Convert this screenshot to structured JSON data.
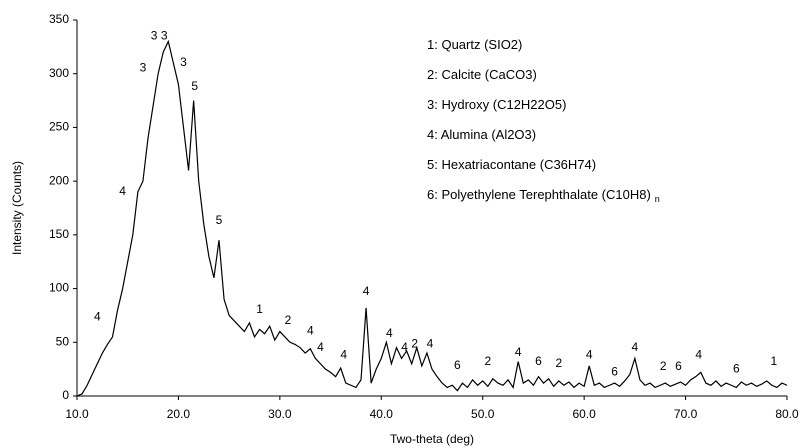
{
  "chart_data": {
    "type": "line",
    "xlabel": "Two-theta (deg)",
    "ylabel": "Intensity (Counts)",
    "color": "#000000",
    "x": [
      10.0,
      10.5,
      11.0,
      11.5,
      12.0,
      12.5,
      13.0,
      13.5,
      14.0,
      14.5,
      15.0,
      15.5,
      16.0,
      16.5,
      17.0,
      17.5,
      18.0,
      18.5,
      19.0,
      19.5,
      20.0,
      20.5,
      21.0,
      21.5,
      22.0,
      22.5,
      23.0,
      23.5,
      24.0,
      24.5,
      25.0,
      25.5,
      26.0,
      26.5,
      27.0,
      27.5,
      28.0,
      28.5,
      29.0,
      29.5,
      30.0,
      30.5,
      31.0,
      31.5,
      32.0,
      32.5,
      33.0,
      33.5,
      34.0,
      34.5,
      35.0,
      35.5,
      36.0,
      36.5,
      37.0,
      37.5,
      38.0,
      38.5,
      39.0,
      39.5,
      40.0,
      40.5,
      41.0,
      41.5,
      42.0,
      42.5,
      43.0,
      43.5,
      44.0,
      44.5,
      45.0,
      45.5,
      46.0,
      46.5,
      47.0,
      47.5,
      48.0,
      48.5,
      49.0,
      49.5,
      50.0,
      50.5,
      51.0,
      51.5,
      52.0,
      52.5,
      53.0,
      53.5,
      54.0,
      54.5,
      55.0,
      55.5,
      56.0,
      56.5,
      57.0,
      57.5,
      58.0,
      58.5,
      59.0,
      59.5,
      60.0,
      60.5,
      61.0,
      61.5,
      62.0,
      62.5,
      63.0,
      63.5,
      64.0,
      64.5,
      65.0,
      65.5,
      66.0,
      66.5,
      67.0,
      67.5,
      68.0,
      68.5,
      69.0,
      69.5,
      70.0,
      70.5,
      71.0,
      71.5,
      72.0,
      72.5,
      73.0,
      73.5,
      74.0,
      74.5,
      75.0,
      75.5,
      76.0,
      76.5,
      77.0,
      77.5,
      78.0,
      78.5,
      79.0,
      79.5,
      80.0
    ],
    "values": [
      0,
      2,
      10,
      20,
      30,
      40,
      48,
      55,
      80,
      100,
      125,
      150,
      190,
      200,
      240,
      270,
      300,
      320,
      330,
      310,
      290,
      250,
      210,
      275,
      200,
      160,
      130,
      110,
      145,
      90,
      75,
      70,
      65,
      60,
      68,
      55,
      62,
      58,
      65,
      52,
      60,
      55,
      50,
      48,
      45,
      40,
      44,
      35,
      30,
      25,
      22,
      18,
      26,
      12,
      10,
      8,
      15,
      82,
      12,
      25,
      35,
      50,
      30,
      45,
      35,
      42,
      30,
      45,
      28,
      40,
      25,
      18,
      12,
      8,
      10,
      5,
      12,
      8,
      15,
      10,
      14,
      9,
      16,
      12,
      10,
      15,
      8,
      32,
      12,
      15,
      10,
      18,
      12,
      16,
      9,
      14,
      10,
      13,
      8,
      12,
      9,
      28,
      10,
      12,
      8,
      10,
      12,
      9,
      14,
      20,
      35,
      15,
      10,
      12,
      8,
      10,
      12,
      9,
      11,
      13,
      10,
      15,
      18,
      22,
      12,
      10,
      14,
      9,
      12,
      10,
      8,
      13,
      10,
      12,
      9,
      11,
      14,
      10,
      8,
      12,
      10
    ],
    "xlim": [
      10,
      80
    ],
    "xticks": [
      {
        "value": 10,
        "label": "10.0"
      },
      {
        "value": 20,
        "label": "20.0"
      },
      {
        "value": 30,
        "label": "30.0"
      },
      {
        "value": 40,
        "label": "40.0"
      },
      {
        "value": 50,
        "label": "50.0"
      },
      {
        "value": 60,
        "label": "60.0"
      },
      {
        "value": 70,
        "label": "70.0"
      },
      {
        "value": 80,
        "label": "80.0"
      }
    ],
    "ylim": [
      0,
      350
    ],
    "yticks": [
      0,
      50,
      100,
      150,
      200,
      250,
      300,
      350
    ],
    "grid": false,
    "annotations": [
      {
        "text": "4",
        "x": 12,
        "y": 73
      },
      {
        "text": "4",
        "x": 14.5,
        "y": 190
      },
      {
        "text": "3",
        "x": 16.5,
        "y": 305
      },
      {
        "text": "3",
        "x": 17.6,
        "y": 335
      },
      {
        "text": "3",
        "x": 18.6,
        "y": 335
      },
      {
        "text": "3",
        "x": 20.5,
        "y": 310
      },
      {
        "text": "5",
        "x": 21.6,
        "y": 288
      },
      {
        "text": "5",
        "x": 24,
        "y": 163
      },
      {
        "text": "1",
        "x": 28,
        "y": 80
      },
      {
        "text": "2",
        "x": 30.8,
        "y": 70
      },
      {
        "text": "4",
        "x": 33,
        "y": 60
      },
      {
        "text": "4",
        "x": 34,
        "y": 45
      },
      {
        "text": "4",
        "x": 36.3,
        "y": 38
      },
      {
        "text": "4",
        "x": 38.5,
        "y": 97
      },
      {
        "text": "4",
        "x": 40.8,
        "y": 58
      },
      {
        "text": "4",
        "x": 42.3,
        "y": 45
      },
      {
        "text": "2",
        "x": 43.3,
        "y": 48
      },
      {
        "text": "4",
        "x": 44.8,
        "y": 48
      },
      {
        "text": "6",
        "x": 47.5,
        "y": 28
      },
      {
        "text": "2",
        "x": 50.5,
        "y": 32
      },
      {
        "text": "4",
        "x": 53.5,
        "y": 40
      },
      {
        "text": "6",
        "x": 55.5,
        "y": 32
      },
      {
        "text": "2",
        "x": 57.5,
        "y": 30
      },
      {
        "text": "4",
        "x": 60.5,
        "y": 38
      },
      {
        "text": "6",
        "x": 63,
        "y": 22
      },
      {
        "text": "4",
        "x": 65,
        "y": 45
      },
      {
        "text": "2",
        "x": 67.8,
        "y": 27
      },
      {
        "text": "6",
        "x": 69.3,
        "y": 27
      },
      {
        "text": "4",
        "x": 71.3,
        "y": 38
      },
      {
        "text": "6",
        "x": 75,
        "y": 25
      },
      {
        "text": "1",
        "x": 78.7,
        "y": 32
      }
    ],
    "notes": [
      {
        "text": "1: Quartz (SIO2)"
      },
      {
        "text": "2: Calcite (CaCO3)"
      },
      {
        "text": "3: Hydroxy (C12H22O5)"
      },
      {
        "text": "4: Alumina (Al2O3)"
      },
      {
        "text": "5: Hexatriacontane (C36H74)"
      },
      {
        "text": "6: Polyethylene Terephthalate (C10H8)",
        "subscript": "n"
      }
    ]
  }
}
